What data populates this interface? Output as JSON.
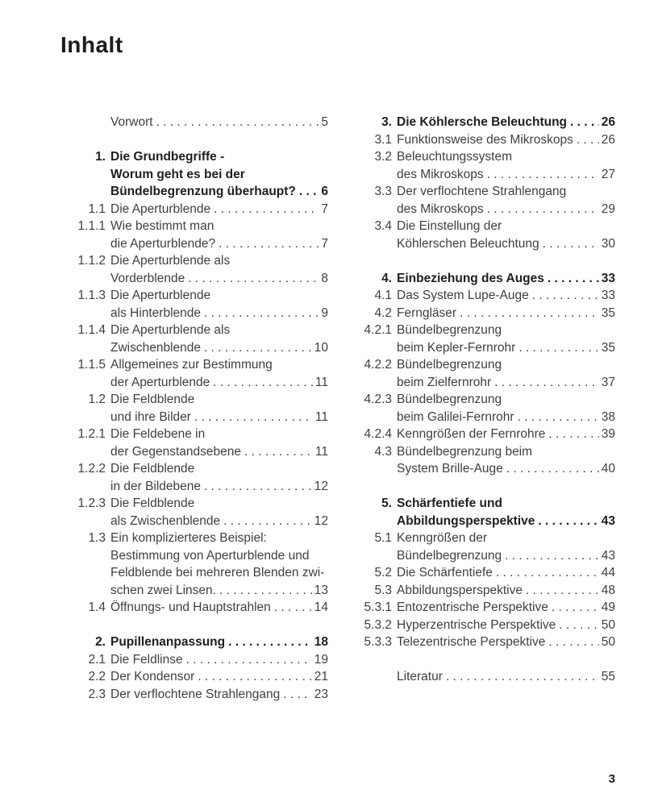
{
  "page": {
    "title": "Inhalt",
    "page_number": "3"
  },
  "meta": {
    "leader_char": "."
  },
  "toc": {
    "columns": [
      {
        "groups": [
          {
            "entries": [
              {
                "num": "",
                "bold": false,
                "lines": [
                  "Vorwort"
                ],
                "page": "5"
              }
            ]
          },
          {
            "entries": [
              {
                "num": "1.",
                "bold": true,
                "lines": [
                  "Die Grundbegriffe -",
                  "Worum geht es bei der",
                  "Bündelbegrenzung überhaupt?"
                ],
                "page": "6"
              },
              {
                "num": "1.1",
                "bold": false,
                "lines": [
                  "Die Aperturblende"
                ],
                "page": "7"
              },
              {
                "num": "1.1.1",
                "bold": false,
                "lines": [
                  "Wie bestimmt man",
                  "die Aperturblende?"
                ],
                "page": "7"
              },
              {
                "num": "1.1.2",
                "bold": false,
                "lines": [
                  "Die Aperturblende als",
                  "Vorderblende"
                ],
                "page": "8"
              },
              {
                "num": "1.1.3",
                "bold": false,
                "lines": [
                  "Die Aperturblende",
                  "als Hinterblende"
                ],
                "page": "9"
              },
              {
                "num": "1.1.4",
                "bold": false,
                "lines": [
                  "Die Aperturblende als",
                  "Zwischenblende"
                ],
                "page": "10"
              },
              {
                "num": "1.1.5",
                "bold": false,
                "lines": [
                  "Allgemeines zur Bestimmung",
                  "der Aperturblende"
                ],
                "page": "11"
              },
              {
                "num": "1.2",
                "bold": false,
                "lines": [
                  "Die Feldblende",
                  "und ihre Bilder"
                ],
                "page": "11"
              },
              {
                "num": "1.2.1",
                "bold": false,
                "lines": [
                  "Die Feldebene in",
                  "der Gegenstandsebene"
                ],
                "page": "11"
              },
              {
                "num": "1.2.2",
                "bold": false,
                "lines": [
                  "Die Feldblende",
                  "in der Bildebene"
                ],
                "page": "12"
              },
              {
                "num": "1.2.3",
                "bold": false,
                "lines": [
                  "Die Feldblende",
                  "als Zwischenblende"
                ],
                "page": "12"
              },
              {
                "num": "1.3",
                "bold": false,
                "lines": [
                  "Ein komplizierteres Beispiel:",
                  "Bestimmung von Aperturblende und",
                  "Feldblende bei mehreren Blenden zwi-",
                  "schen zwei Linsen."
                ],
                "page": "13"
              },
              {
                "num": "1.4",
                "bold": false,
                "lines": [
                  "Öffnungs- und Hauptstrahlen"
                ],
                "page": "14"
              }
            ]
          },
          {
            "entries": [
              {
                "num": "2.",
                "bold": true,
                "lines": [
                  "Pupillenanpassung"
                ],
                "page": "18"
              },
              {
                "num": "2.1",
                "bold": false,
                "lines": [
                  "Die Feldlinse"
                ],
                "page": "19"
              },
              {
                "num": "2.2",
                "bold": false,
                "lines": [
                  "Der Kondensor"
                ],
                "page": "21"
              },
              {
                "num": "2.3",
                "bold": false,
                "lines": [
                  "Der verflochtene Strahlengang"
                ],
                "page": "23"
              }
            ]
          }
        ]
      },
      {
        "groups": [
          {
            "entries": [
              {
                "num": "3.",
                "bold": true,
                "lines": [
                  "Die Köhlersche Beleuchtung"
                ],
                "page": "26"
              },
              {
                "num": "3.1",
                "bold": false,
                "lines": [
                  "Funktionsweise des Mikroskops"
                ],
                "page": "26"
              },
              {
                "num": "3.2",
                "bold": false,
                "lines": [
                  "Beleuchtungssystem",
                  "des Mikroskops"
                ],
                "page": "27"
              },
              {
                "num": "3.3",
                "bold": false,
                "lines": [
                  "Der verflochtene Strahlengang",
                  "des Mikroskops"
                ],
                "page": "29"
              },
              {
                "num": "3.4",
                "bold": false,
                "lines": [
                  "Die Einstellung der",
                  "Köhlerschen Beleuchtung"
                ],
                "page": "30"
              }
            ]
          },
          {
            "entries": [
              {
                "num": "4.",
                "bold": true,
                "lines": [
                  "Einbeziehung des Auges"
                ],
                "page": "33"
              },
              {
                "num": "4.1",
                "bold": false,
                "lines": [
                  "Das System Lupe-Auge"
                ],
                "page": "33"
              },
              {
                "num": "4.2",
                "bold": false,
                "lines": [
                  "Ferngläser"
                ],
                "page": "35"
              },
              {
                "num": "4.2.1",
                "bold": false,
                "lines": [
                  "Bündelbegrenzung",
                  "beim Kepler-Fernrohr"
                ],
                "page": "35"
              },
              {
                "num": "4.2.2",
                "bold": false,
                "lines": [
                  "Bündelbegrenzung",
                  "beim Zielfernrohr"
                ],
                "page": "37"
              },
              {
                "num": "4.2.3",
                "bold": false,
                "lines": [
                  "Bündelbegrenzung",
                  "beim Galilei-Fernrohr"
                ],
                "page": "38"
              },
              {
                "num": "4.2.4",
                "bold": false,
                "lines": [
                  "Kenngrößen der Fernrohre"
                ],
                "page": "39"
              },
              {
                "num": "4.3",
                "bold": false,
                "lines": [
                  "Bündelbegrenzung beim",
                  "System Brille-Auge"
                ],
                "page": "40"
              }
            ]
          },
          {
            "entries": [
              {
                "num": "5.",
                "bold": true,
                "lines": [
                  "Schärfentiefe und",
                  "Abbildungsperspektive"
                ],
                "page": "43"
              },
              {
                "num": "5.1",
                "bold": false,
                "lines": [
                  "Kenngrößen der",
                  "Bündelbegrenzung"
                ],
                "page": "43"
              },
              {
                "num": "5.2",
                "bold": false,
                "lines": [
                  "Die Schärfentiefe"
                ],
                "page": "44"
              },
              {
                "num": "5.3",
                "bold": false,
                "lines": [
                  "Abbildungsperspektive"
                ],
                "page": "48"
              },
              {
                "num": "5.3.1",
                "bold": false,
                "lines": [
                  "Entozentrische Perspektive"
                ],
                "page": "49"
              },
              {
                "num": "5.3.2",
                "bold": false,
                "lines": [
                  "Hyperzentrische Perspektive"
                ],
                "page": "50"
              },
              {
                "num": "5.3.3",
                "bold": false,
                "lines": [
                  "Telezentrische Perspektive"
                ],
                "page": "50"
              }
            ]
          },
          {
            "entries": [
              {
                "num": "",
                "bold": false,
                "lines": [
                  "Literatur"
                ],
                "page": "55"
              }
            ]
          }
        ]
      }
    ]
  }
}
